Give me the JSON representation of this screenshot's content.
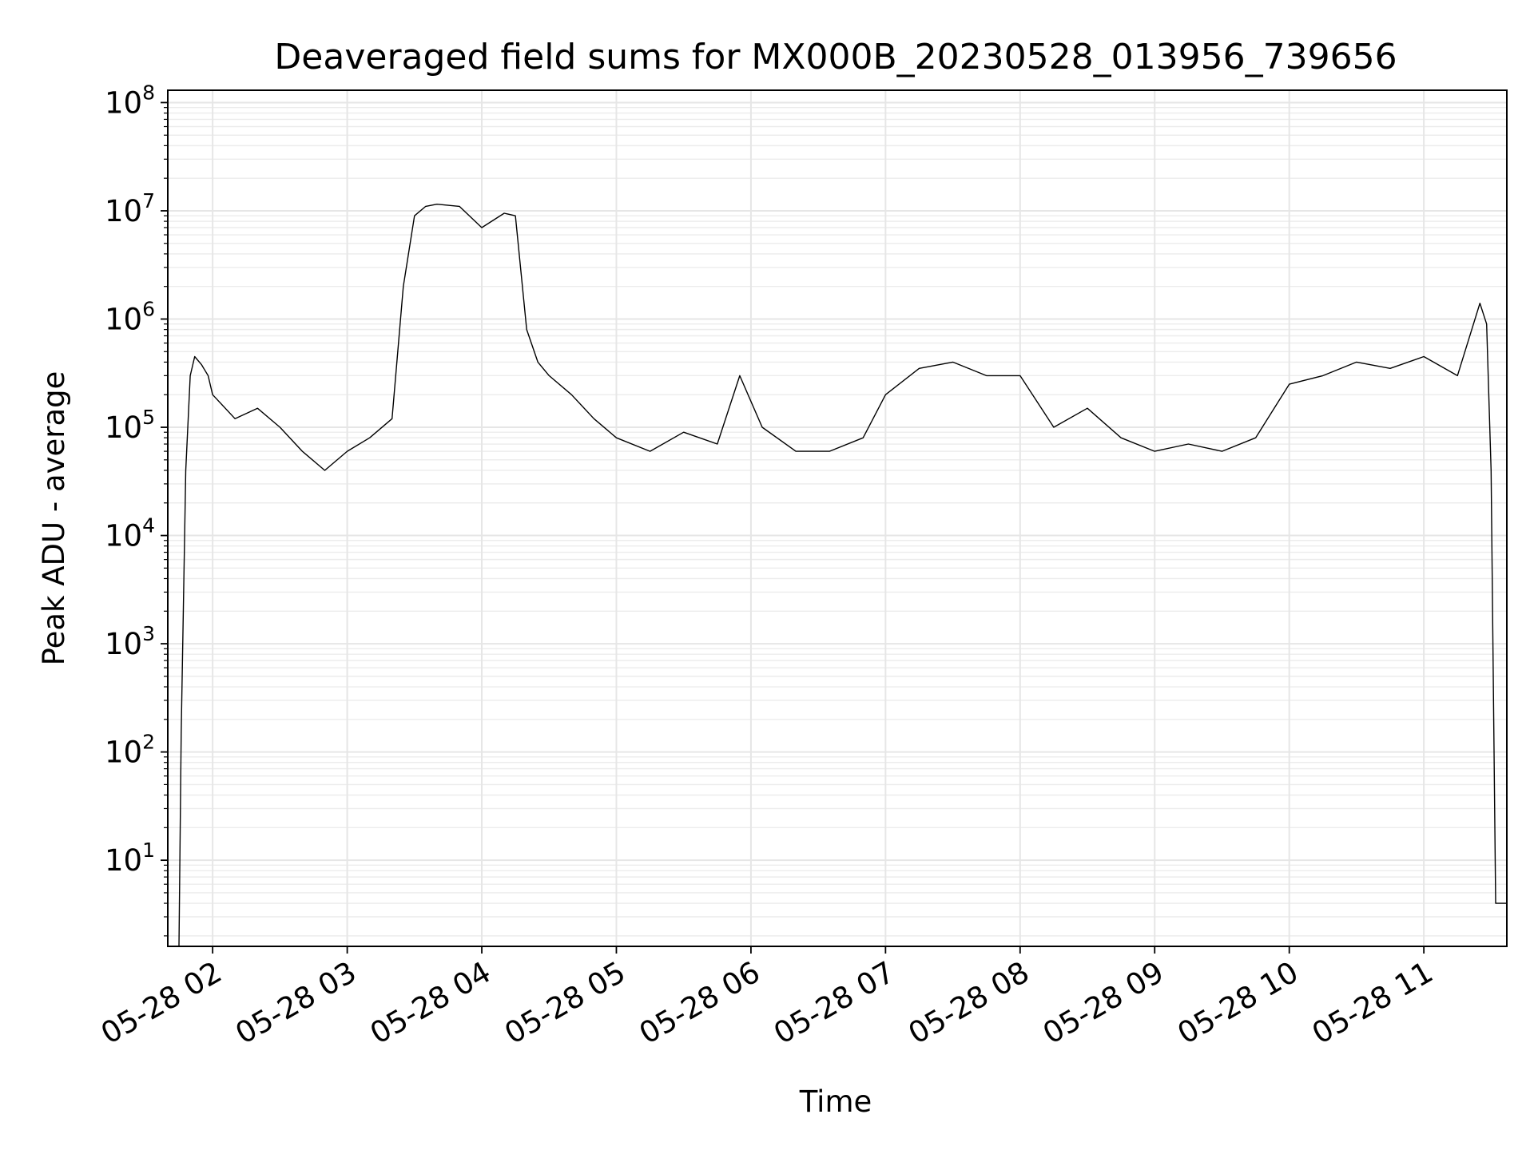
{
  "chart_data": {
    "type": "line",
    "title": "Deaveraged field sums for MX000B_20230528_013956_739656",
    "xlabel": "Time",
    "ylabel": "Peak ADU - average",
    "yscale": "log",
    "ylim": [
      1.6,
      130000000
    ],
    "xlim": [
      "2023-05-28 01:40",
      "2023-05-28 11:37"
    ],
    "grid": true,
    "line_color": "#000000",
    "x_ticks": [
      "05-28 02",
      "05-28 03",
      "05-28 04",
      "05-28 05",
      "05-28 06",
      "05-28 07",
      "05-28 08",
      "05-28 09",
      "05-28 10",
      "05-28 11"
    ],
    "y_ticks": [
      {
        "base": "10",
        "exp": "1",
        "value": 10
      },
      {
        "base": "10",
        "exp": "2",
        "value": 100
      },
      {
        "base": "10",
        "exp": "3",
        "value": 1000
      },
      {
        "base": "10",
        "exp": "4",
        "value": 10000
      },
      {
        "base": "10",
        "exp": "5",
        "value": 100000
      },
      {
        "base": "10",
        "exp": "6",
        "value": 1000000
      },
      {
        "base": "10",
        "exp": "7",
        "value": 10000000
      },
      {
        "base": "10",
        "exp": "8",
        "value": 100000000
      }
    ],
    "series": [
      {
        "x": [
          "2023-05-28 01:45",
          "2023-05-28 01:46",
          "2023-05-28 01:48",
          "2023-05-28 01:50",
          "2023-05-28 01:52",
          "2023-05-28 01:55",
          "2023-05-28 01:58",
          "2023-05-28 02:00",
          "2023-05-28 02:10",
          "2023-05-28 02:20",
          "2023-05-28 02:30",
          "2023-05-28 02:40",
          "2023-05-28 02:50",
          "2023-05-28 03:00",
          "2023-05-28 03:10",
          "2023-05-28 03:20",
          "2023-05-28 03:25",
          "2023-05-28 03:30",
          "2023-05-28 03:35",
          "2023-05-28 03:40",
          "2023-05-28 03:50",
          "2023-05-28 04:00",
          "2023-05-28 04:10",
          "2023-05-28 04:15",
          "2023-05-28 04:20",
          "2023-05-28 04:25",
          "2023-05-28 04:30",
          "2023-05-28 04:40",
          "2023-05-28 04:50",
          "2023-05-28 05:00",
          "2023-05-28 05:15",
          "2023-05-28 05:30",
          "2023-05-28 05:45",
          "2023-05-28 05:55",
          "2023-05-28 06:05",
          "2023-05-28 06:20",
          "2023-05-28 06:35",
          "2023-05-28 06:50",
          "2023-05-28 07:00",
          "2023-05-28 07:15",
          "2023-05-28 07:30",
          "2023-05-28 07:45",
          "2023-05-28 08:00",
          "2023-05-28 08:15",
          "2023-05-28 08:30",
          "2023-05-28 08:45",
          "2023-05-28 09:00",
          "2023-05-28 09:15",
          "2023-05-28 09:30",
          "2023-05-28 09:45",
          "2023-05-28 10:00",
          "2023-05-28 10:15",
          "2023-05-28 10:30",
          "2023-05-28 10:45",
          "2023-05-28 11:00",
          "2023-05-28 11:15",
          "2023-05-28 11:25",
          "2023-05-28 11:28",
          "2023-05-28 11:30",
          "2023-05-28 11:32",
          "2023-05-28 11:37"
        ],
        "y": [
          1.6,
          150,
          40000,
          300000,
          450000,
          380000,
          300000,
          200000,
          120000,
          150000,
          100000,
          60000,
          40000,
          60000,
          80000,
          120000,
          2000000,
          9000000,
          11000000,
          11500000,
          11000000,
          7000000,
          9500000,
          9000000,
          800000,
          400000,
          300000,
          200000,
          120000,
          80000,
          60000,
          90000,
          70000,
          300000,
          100000,
          60000,
          60000,
          80000,
          200000,
          350000,
          400000,
          300000,
          300000,
          100000,
          150000,
          80000,
          60000,
          70000,
          60000,
          80000,
          250000,
          300000,
          400000,
          350000,
          450000,
          300000,
          1400000,
          900000,
          40000,
          4,
          4
        ]
      }
    ]
  }
}
